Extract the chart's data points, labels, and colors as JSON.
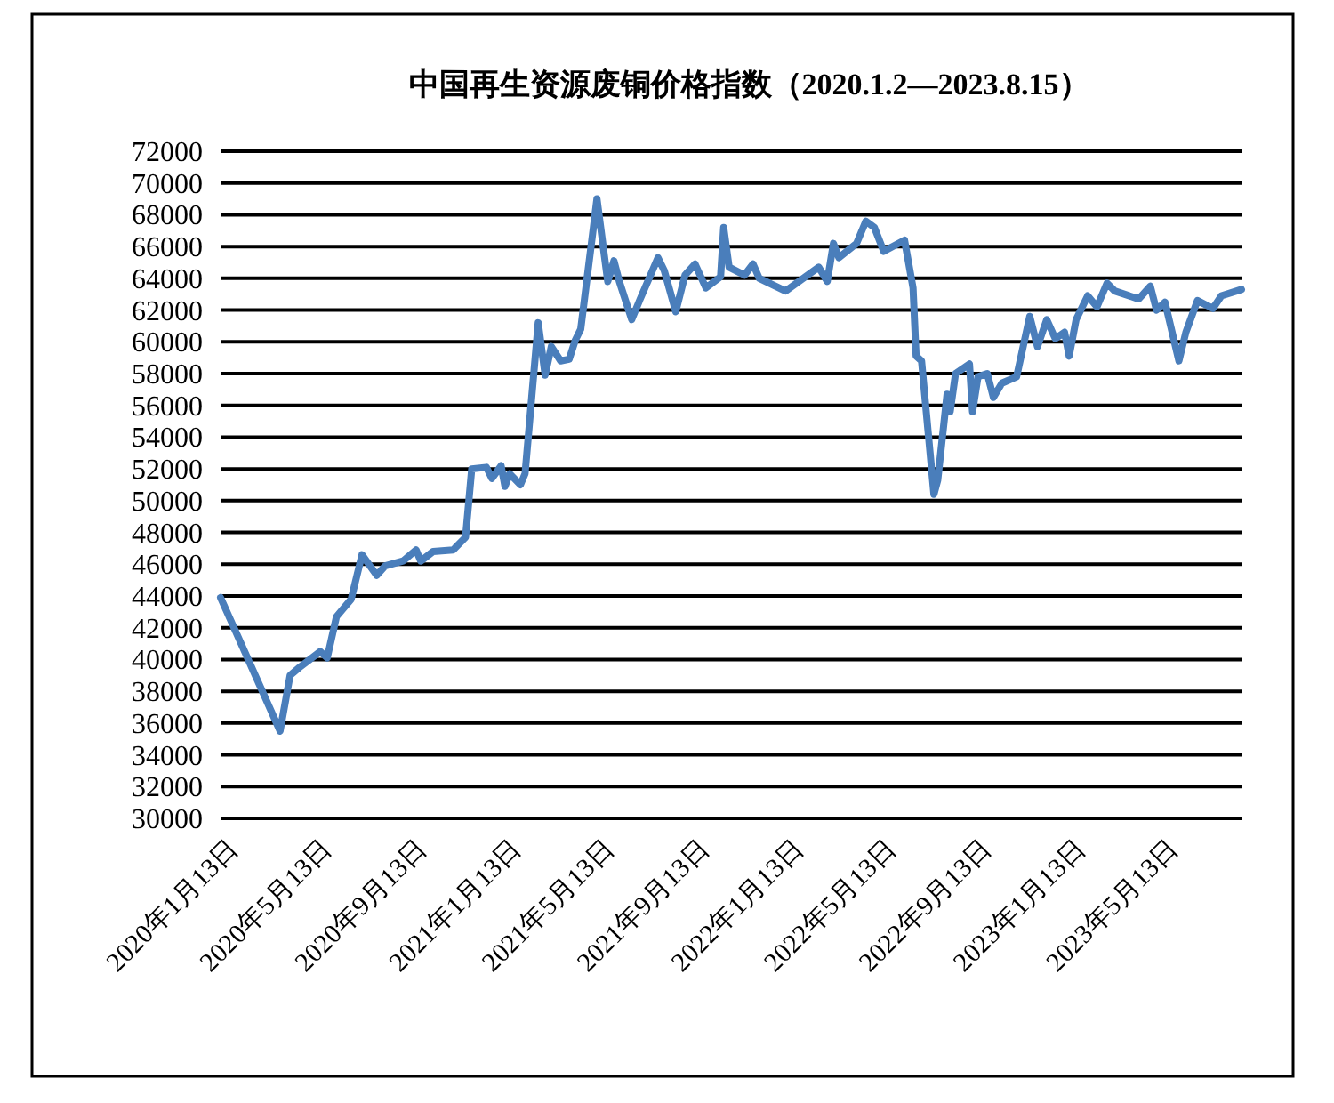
{
  "chart_data": {
    "type": "line",
    "title": "中国再生资源废铜价格指数（2020.1.2—2023.8.15）",
    "x": [
      "2020-01-02",
      "2020-03-19",
      "2020-04-01",
      "2020-04-13",
      "2020-05-10",
      "2020-05-19",
      "2020-05-31",
      "2020-06-19",
      "2020-07-03",
      "2020-07-22",
      "2020-08-02",
      "2020-08-25",
      "2020-09-11",
      "2020-09-17",
      "2020-10-03",
      "2020-10-29",
      "2020-11-14",
      "2020-11-22",
      "2020-12-11",
      "2020-12-18",
      "2020-12-30",
      "2021-01-04",
      "2021-01-10",
      "2021-01-24",
      "2021-01-30",
      "2021-02-16",
      "2021-02-25",
      "2021-03-05",
      "2021-03-17",
      "2021-03-28",
      "2021-04-05",
      "2021-04-12",
      "2021-05-03",
      "2021-05-17",
      "2021-05-25",
      "2021-06-01",
      "2021-06-17",
      "2021-06-28",
      "2021-07-21",
      "2021-07-29",
      "2021-08-13",
      "2021-08-25",
      "2021-09-07",
      "2021-09-21",
      "2021-10-10",
      "2021-10-14",
      "2021-10-21",
      "2021-11-10",
      "2021-11-21",
      "2021-11-29",
      "2022-01-02",
      "2022-02-14",
      "2022-02-25",
      "2022-03-05",
      "2022-03-12",
      "2022-04-04",
      "2022-04-16",
      "2022-04-27",
      "2022-05-09",
      "2022-06-05",
      "2022-06-16",
      "2022-06-20",
      "2022-06-27",
      "2022-07-13",
      "2022-07-18",
      "2022-07-30",
      "2022-08-03",
      "2022-08-10",
      "2022-08-28",
      "2022-09-01",
      "2022-09-08",
      "2022-09-20",
      "2022-09-28",
      "2022-10-09",
      "2022-10-28",
      "2022-11-14",
      "2022-11-24",
      "2022-12-06",
      "2022-12-17",
      "2022-12-29",
      "2023-01-04",
      "2023-01-13",
      "2023-01-28",
      "2023-02-09",
      "2023-02-22",
      "2023-03-04",
      "2023-04-04",
      "2023-04-19",
      "2023-04-27",
      "2023-05-08",
      "2023-05-26",
      "2023-06-04",
      "2023-06-19",
      "2023-07-09",
      "2023-07-20",
      "2023-08-15"
    ],
    "series": [
      {
        "color": "#4a7ebb",
        "values": [
          43900,
          35500,
          39000,
          39500,
          40500,
          40100,
          42700,
          43800,
          46600,
          45300,
          45900,
          46200,
          46900,
          46200,
          46800,
          46900,
          47700,
          52000,
          52100,
          51400,
          52200,
          50900,
          51700,
          51000,
          51700,
          61200,
          57900,
          59700,
          58800,
          58900,
          60100,
          60800,
          69000,
          63800,
          65100,
          63800,
          61400,
          62700,
          65300,
          64500,
          61900,
          64200,
          64900,
          63400,
          64100,
          67200,
          64700,
          64200,
          64900,
          64000,
          63200,
          64700,
          63800,
          66200,
          65300,
          66200,
          67600,
          67200,
          65700,
          66400,
          63400,
          59100,
          58800,
          50400,
          51300,
          56700,
          55600,
          58000,
          58600,
          55600,
          57800,
          58000,
          56500,
          57400,
          57800,
          61600,
          59700,
          61400,
          60200,
          60600,
          59100,
          61400,
          62900,
          62200,
          63700,
          63200,
          62700,
          63500,
          62000,
          62500,
          58800,
          60600,
          62600,
          62100,
          62900,
          63300
        ]
      }
    ],
    "xlim": [
      "2020-01-02",
      "2023-08-15"
    ],
    "xticks": [
      {
        "value": "2020-01-13",
        "label": "2020年1月13日"
      },
      {
        "value": "2020-05-13",
        "label": "2020年5月13日"
      },
      {
        "value": "2020-09-13",
        "label": "2020年9月13日"
      },
      {
        "value": "2021-01-13",
        "label": "2021年1月13日"
      },
      {
        "value": "2021-05-13",
        "label": "2021年5月13日"
      },
      {
        "value": "2021-09-13",
        "label": "2021年9月13日"
      },
      {
        "value": "2022-01-13",
        "label": "2022年1月13日"
      },
      {
        "value": "2022-05-13",
        "label": "2022年5月13日"
      },
      {
        "value": "2022-09-13",
        "label": "2022年9月13日"
      },
      {
        "value": "2023-01-13",
        "label": "2023年1月13日"
      },
      {
        "value": "2023-05-13",
        "label": "2023年5月13日"
      }
    ],
    "ylim": [
      30000,
      72000
    ],
    "yticks": [
      30000,
      32000,
      34000,
      36000,
      38000,
      40000,
      42000,
      44000,
      46000,
      48000,
      50000,
      52000,
      54000,
      56000,
      58000,
      60000,
      62000,
      64000,
      66000,
      68000,
      70000,
      72000
    ],
    "grid": "y",
    "marker": "none",
    "line_style": "solid"
  }
}
